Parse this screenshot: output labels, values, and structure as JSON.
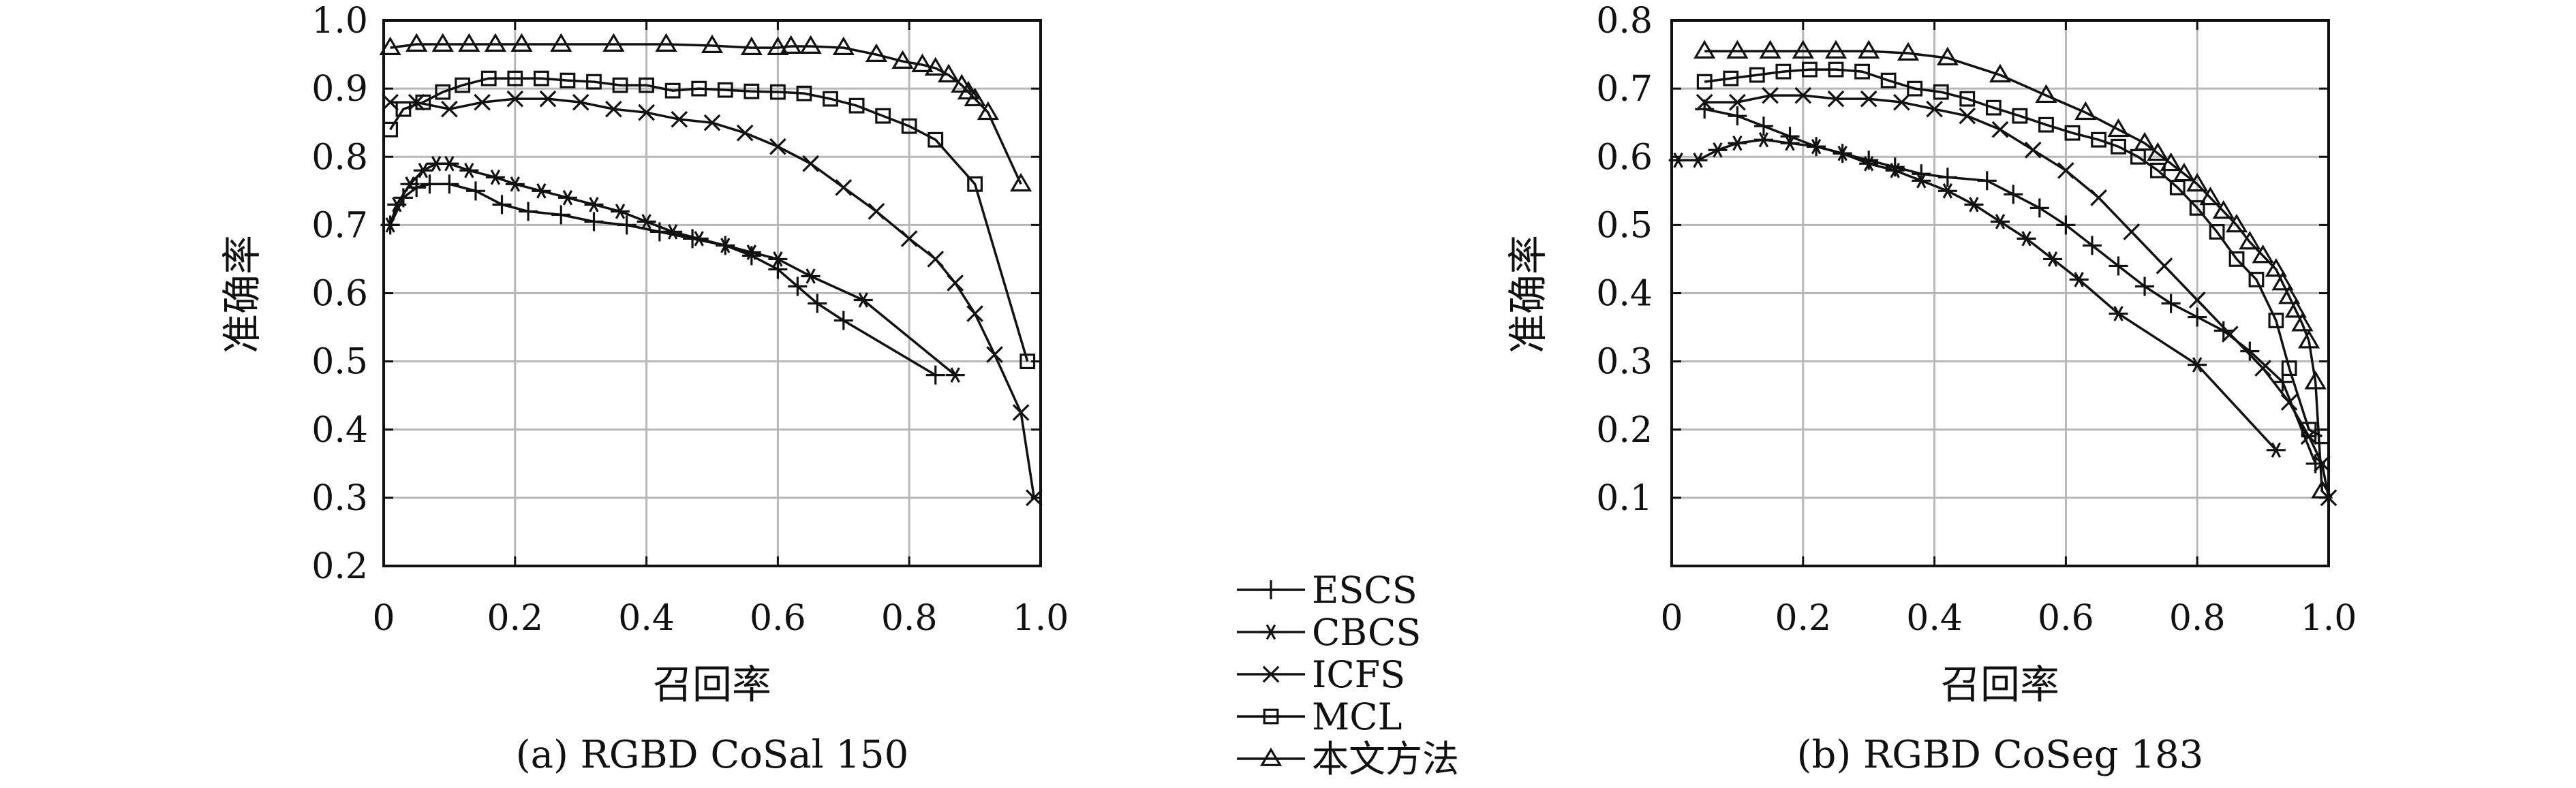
{
  "legend": {
    "items": [
      {
        "label": "ESCS",
        "marker": "plus"
      },
      {
        "label": "CBCS",
        "marker": "asterisk"
      },
      {
        "label": "ICFS",
        "marker": "cross"
      },
      {
        "label": "MCL",
        "marker": "square"
      },
      {
        "label": "本文方法",
        "marker": "triangle"
      }
    ]
  },
  "chart_data": [
    {
      "type": "line",
      "caption": "(a) RGBD CoSal 150",
      "xlabel": "召回率",
      "ylabel": "准确率",
      "xlim": [
        0,
        1.0
      ],
      "ylim": [
        0.2,
        1.0
      ],
      "xticks": [
        "0",
        "0.2",
        "0.4",
        "0.6",
        "0.8",
        "1.0"
      ],
      "yticks": [
        "0.2",
        "0.3",
        "0.4",
        "0.5",
        "0.6",
        "0.7",
        "0.8",
        "0.9",
        "1.0"
      ],
      "grid": true,
      "series": [
        {
          "name": "ESCS",
          "marker": "plus",
          "points": [
            [
              0.01,
              0.7
            ],
            [
              0.03,
              0.74
            ],
            [
              0.05,
              0.755
            ],
            [
              0.07,
              0.76
            ],
            [
              0.1,
              0.76
            ],
            [
              0.14,
              0.75
            ],
            [
              0.18,
              0.73
            ],
            [
              0.22,
              0.72
            ],
            [
              0.27,
              0.715
            ],
            [
              0.32,
              0.705
            ],
            [
              0.37,
              0.7
            ],
            [
              0.42,
              0.69
            ],
            [
              0.47,
              0.68
            ],
            [
              0.52,
              0.67
            ],
            [
              0.56,
              0.655
            ],
            [
              0.6,
              0.635
            ],
            [
              0.63,
              0.61
            ],
            [
              0.66,
              0.585
            ],
            [
              0.7,
              0.56
            ],
            [
              0.84,
              0.48
            ]
          ]
        },
        {
          "name": "CBCS",
          "marker": "asterisk",
          "points": [
            [
              0.01,
              0.7
            ],
            [
              0.02,
              0.73
            ],
            [
              0.04,
              0.76
            ],
            [
              0.06,
              0.78
            ],
            [
              0.08,
              0.79
            ],
            [
              0.1,
              0.79
            ],
            [
              0.13,
              0.78
            ],
            [
              0.17,
              0.77
            ],
            [
              0.2,
              0.76
            ],
            [
              0.24,
              0.75
            ],
            [
              0.28,
              0.74
            ],
            [
              0.32,
              0.73
            ],
            [
              0.36,
              0.72
            ],
            [
              0.4,
              0.705
            ],
            [
              0.44,
              0.69
            ],
            [
              0.48,
              0.68
            ],
            [
              0.52,
              0.67
            ],
            [
              0.56,
              0.66
            ],
            [
              0.6,
              0.65
            ],
            [
              0.65,
              0.625
            ],
            [
              0.73,
              0.59
            ],
            [
              0.87,
              0.48
            ]
          ]
        },
        {
          "name": "ICFS",
          "marker": "cross",
          "points": [
            [
              0.01,
              0.88
            ],
            [
              0.05,
              0.88
            ],
            [
              0.1,
              0.87
            ],
            [
              0.15,
              0.88
            ],
            [
              0.2,
              0.885
            ],
            [
              0.25,
              0.885
            ],
            [
              0.3,
              0.88
            ],
            [
              0.35,
              0.87
            ],
            [
              0.4,
              0.865
            ],
            [
              0.45,
              0.855
            ],
            [
              0.5,
              0.85
            ],
            [
              0.55,
              0.835
            ],
            [
              0.6,
              0.815
            ],
            [
              0.65,
              0.79
            ],
            [
              0.7,
              0.755
            ],
            [
              0.75,
              0.72
            ],
            [
              0.8,
              0.68
            ],
            [
              0.84,
              0.65
            ],
            [
              0.87,
              0.615
            ],
            [
              0.9,
              0.57
            ],
            [
              0.93,
              0.51
            ],
            [
              0.97,
              0.425
            ],
            [
              0.99,
              0.3
            ]
          ]
        },
        {
          "name": "MCL",
          "marker": "square",
          "points": [
            [
              0.01,
              0.84
            ],
            [
              0.03,
              0.87
            ],
            [
              0.06,
              0.88
            ],
            [
              0.09,
              0.895
            ],
            [
              0.12,
              0.905
            ],
            [
              0.16,
              0.915
            ],
            [
              0.2,
              0.915
            ],
            [
              0.24,
              0.915
            ],
            [
              0.28,
              0.912
            ],
            [
              0.32,
              0.91
            ],
            [
              0.36,
              0.905
            ],
            [
              0.4,
              0.905
            ],
            [
              0.44,
              0.897
            ],
            [
              0.48,
              0.9
            ],
            [
              0.52,
              0.898
            ],
            [
              0.56,
              0.896
            ],
            [
              0.6,
              0.895
            ],
            [
              0.64,
              0.893
            ],
            [
              0.68,
              0.885
            ],
            [
              0.72,
              0.875
            ],
            [
              0.76,
              0.86
            ],
            [
              0.8,
              0.845
            ],
            [
              0.84,
              0.825
            ],
            [
              0.9,
              0.76
            ],
            [
              0.98,
              0.5
            ]
          ]
        },
        {
          "name": "本文方法",
          "marker": "triangle",
          "points": [
            [
              0.01,
              0.96
            ],
            [
              0.05,
              0.965
            ],
            [
              0.09,
              0.965
            ],
            [
              0.13,
              0.965
            ],
            [
              0.17,
              0.965
            ],
            [
              0.21,
              0.965
            ],
            [
              0.27,
              0.965
            ],
            [
              0.35,
              0.965
            ],
            [
              0.43,
              0.965
            ],
            [
              0.5,
              0.963
            ],
            [
              0.56,
              0.96
            ],
            [
              0.6,
              0.96
            ],
            [
              0.62,
              0.962
            ],
            [
              0.65,
              0.962
            ],
            [
              0.7,
              0.96
            ],
            [
              0.75,
              0.95
            ],
            [
              0.79,
              0.94
            ],
            [
              0.82,
              0.935
            ],
            [
              0.84,
              0.93
            ],
            [
              0.86,
              0.92
            ],
            [
              0.88,
              0.905
            ],
            [
              0.89,
              0.895
            ],
            [
              0.9,
              0.885
            ],
            [
              0.92,
              0.865
            ],
            [
              0.97,
              0.76
            ]
          ]
        }
      ]
    },
    {
      "type": "line",
      "caption": "(b) RGBD CoSeg 183",
      "xlabel": "召回率",
      "ylabel": "准确率",
      "xlim": [
        0,
        1.0
      ],
      "ylim": [
        0,
        0.8
      ],
      "xticks": [
        "0",
        "0.2",
        "0.4",
        "0.6",
        "0.8",
        "1.0"
      ],
      "yticks": [
        "0.1",
        "0.2",
        "0.3",
        "0.4",
        "0.5",
        "0.6",
        "0.7",
        "0.8"
      ],
      "grid": true,
      "series": [
        {
          "name": "ESCS",
          "marker": "plus",
          "points": [
            [
              0.05,
              0.67
            ],
            [
              0.1,
              0.66
            ],
            [
              0.14,
              0.645
            ],
            [
              0.18,
              0.63
            ],
            [
              0.22,
              0.615
            ],
            [
              0.26,
              0.605
            ],
            [
              0.3,
              0.595
            ],
            [
              0.34,
              0.585
            ],
            [
              0.38,
              0.575
            ],
            [
              0.42,
              0.57
            ],
            [
              0.48,
              0.565
            ],
            [
              0.52,
              0.545
            ],
            [
              0.56,
              0.525
            ],
            [
              0.6,
              0.5
            ],
            [
              0.64,
              0.47
            ],
            [
              0.68,
              0.44
            ],
            [
              0.72,
              0.41
            ],
            [
              0.76,
              0.385
            ],
            [
              0.8,
              0.365
            ],
            [
              0.84,
              0.345
            ],
            [
              0.88,
              0.315
            ],
            [
              0.93,
              0.27
            ],
            [
              0.98,
              0.15
            ]
          ]
        },
        {
          "name": "CBCS",
          "marker": "asterisk",
          "points": [
            [
              0.01,
              0.595
            ],
            [
              0.04,
              0.595
            ],
            [
              0.07,
              0.61
            ],
            [
              0.1,
              0.62
            ],
            [
              0.14,
              0.625
            ],
            [
              0.18,
              0.62
            ],
            [
              0.22,
              0.615
            ],
            [
              0.26,
              0.605
            ],
            [
              0.3,
              0.59
            ],
            [
              0.34,
              0.58
            ],
            [
              0.38,
              0.565
            ],
            [
              0.42,
              0.55
            ],
            [
              0.46,
              0.53
            ],
            [
              0.5,
              0.505
            ],
            [
              0.54,
              0.48
            ],
            [
              0.58,
              0.45
            ],
            [
              0.62,
              0.42
            ],
            [
              0.68,
              0.37
            ],
            [
              0.8,
              0.295
            ],
            [
              0.92,
              0.17
            ]
          ]
        },
        {
          "name": "ICFS",
          "marker": "cross",
          "points": [
            [
              0.05,
              0.68
            ],
            [
              0.1,
              0.68
            ],
            [
              0.15,
              0.69
            ],
            [
              0.2,
              0.69
            ],
            [
              0.25,
              0.685
            ],
            [
              0.3,
              0.685
            ],
            [
              0.35,
              0.68
            ],
            [
              0.4,
              0.67
            ],
            [
              0.45,
              0.66
            ],
            [
              0.5,
              0.64
            ],
            [
              0.55,
              0.61
            ],
            [
              0.6,
              0.58
            ],
            [
              0.65,
              0.54
            ],
            [
              0.7,
              0.49
            ],
            [
              0.75,
              0.44
            ],
            [
              0.8,
              0.39
            ],
            [
              0.85,
              0.34
            ],
            [
              0.9,
              0.29
            ],
            [
              0.94,
              0.24
            ],
            [
              0.97,
              0.19
            ],
            [
              0.99,
              0.15
            ],
            [
              1.0,
              0.1
            ]
          ]
        },
        {
          "name": "MCL",
          "marker": "square",
          "points": [
            [
              0.05,
              0.71
            ],
            [
              0.09,
              0.715
            ],
            [
              0.13,
              0.72
            ],
            [
              0.17,
              0.725
            ],
            [
              0.21,
              0.728
            ],
            [
              0.25,
              0.728
            ],
            [
              0.29,
              0.725
            ],
            [
              0.33,
              0.712
            ],
            [
              0.37,
              0.7
            ],
            [
              0.41,
              0.695
            ],
            [
              0.45,
              0.685
            ],
            [
              0.49,
              0.672
            ],
            [
              0.53,
              0.66
            ],
            [
              0.57,
              0.647
            ],
            [
              0.61,
              0.635
            ],
            [
              0.65,
              0.625
            ],
            [
              0.68,
              0.615
            ],
            [
              0.71,
              0.6
            ],
            [
              0.74,
              0.58
            ],
            [
              0.77,
              0.555
            ],
            [
              0.8,
              0.525
            ],
            [
              0.83,
              0.49
            ],
            [
              0.86,
              0.45
            ],
            [
              0.89,
              0.42
            ],
            [
              0.92,
              0.36
            ],
            [
              0.94,
              0.29
            ],
            [
              0.97,
              0.2
            ],
            [
              0.99,
              0.19
            ]
          ]
        },
        {
          "name": "本文方法",
          "marker": "triangle",
          "points": [
            [
              0.05,
              0.755
            ],
            [
              0.1,
              0.755
            ],
            [
              0.15,
              0.755
            ],
            [
              0.2,
              0.755
            ],
            [
              0.25,
              0.755
            ],
            [
              0.3,
              0.755
            ],
            [
              0.36,
              0.752
            ],
            [
              0.42,
              0.745
            ],
            [
              0.5,
              0.72
            ],
            [
              0.57,
              0.69
            ],
            [
              0.63,
              0.665
            ],
            [
              0.68,
              0.64
            ],
            [
              0.72,
              0.62
            ],
            [
              0.74,
              0.605
            ],
            [
              0.76,
              0.59
            ],
            [
              0.78,
              0.575
            ],
            [
              0.8,
              0.56
            ],
            [
              0.82,
              0.54
            ],
            [
              0.84,
              0.52
            ],
            [
              0.86,
              0.5
            ],
            [
              0.88,
              0.475
            ],
            [
              0.9,
              0.455
            ],
            [
              0.92,
              0.435
            ],
            [
              0.93,
              0.415
            ],
            [
              0.94,
              0.395
            ],
            [
              0.95,
              0.375
            ],
            [
              0.96,
              0.355
            ],
            [
              0.97,
              0.33
            ],
            [
              0.98,
              0.27
            ],
            [
              0.99,
              0.11
            ]
          ]
        }
      ]
    }
  ]
}
